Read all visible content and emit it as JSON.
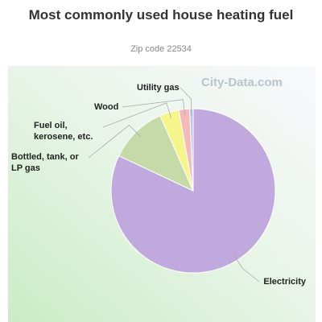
{
  "chart_data": {
    "type": "pie",
    "title": "Most commonly used house heating fuel",
    "subtitle": "Zip code 22534",
    "watermark": "City-Data.com",
    "categories": [
      "Electricity",
      "Bottled, tank, or LP gas",
      "Fuel oil, kerosene, etc.",
      "Wood",
      "Utility gas"
    ],
    "values": [
      82,
      11.4,
      3.8,
      2.1,
      0.7
    ],
    "colors": [
      "#c0a9dc",
      "#c6daa9",
      "#f5f58c",
      "#f6b9ba",
      "#b9c9ea"
    ]
  }
}
